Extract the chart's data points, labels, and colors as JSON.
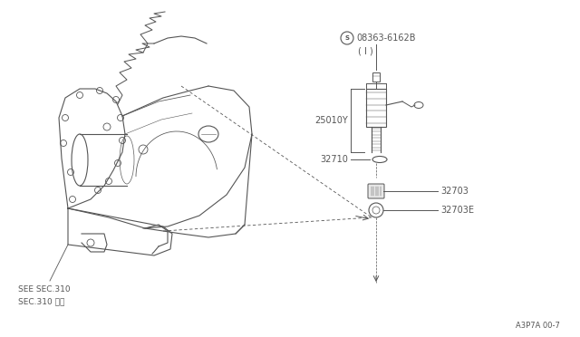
{
  "bg_color": "#ffffff",
  "fig_width": 6.4,
  "fig_height": 3.72,
  "lc": "#555555",
  "see_sec_label": "SEE SEC.310",
  "sec_310_label": "SEC.310 参照",
  "diagram_ref": "A3P7A 00-7",
  "label_S": "S",
  "label_part_num": "08363-6162B",
  "label_I": "( I )",
  "label_25010Y": "25010Y",
  "label_32710": "32710",
  "label_32703": "32703",
  "label_32703E": "32703E"
}
